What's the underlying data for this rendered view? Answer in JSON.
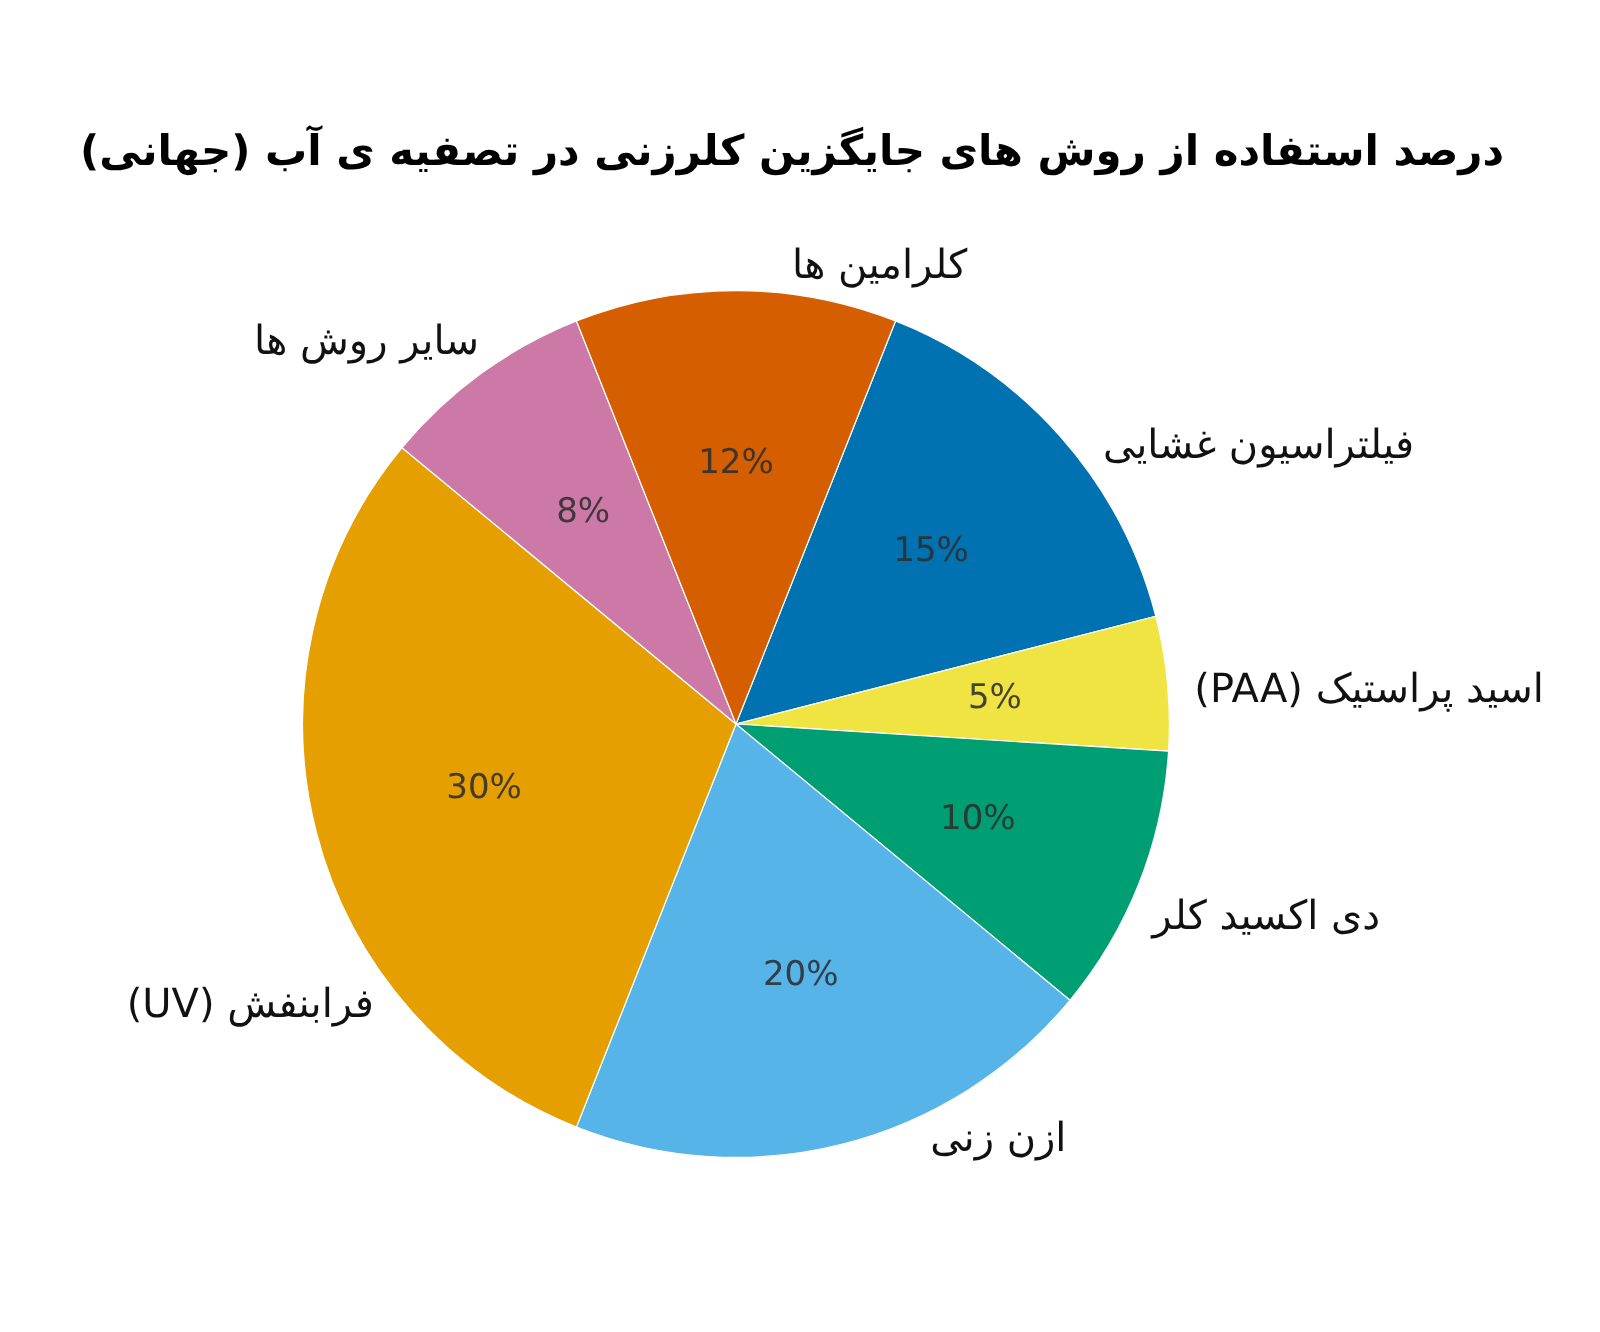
{
  "chart_data": {
    "type": "pie",
    "title": "درصد استفاده از روش های جایگزین کلرزنی در تصفیه ی آب (جهانی)",
    "categories": [
      "فیلتراسیون غشایی",
      "اسید پراستیک (PAA)",
      "دی اکسید کلر",
      "ازن زنی",
      "فرابنفش (UV)",
      "سایر روش ها",
      "کلرامین ها"
    ],
    "values": [
      15,
      5,
      10,
      20,
      30,
      8,
      12
    ],
    "colors": [
      "#0072b2",
      "#f0e442",
      "#009e73",
      "#56b4e9",
      "#e69f00",
      "#cc79a7",
      "#d55e00"
    ],
    "value_labels": [
      "15%",
      "5%",
      "10%",
      "20%",
      "30%",
      "8%",
      "12%"
    ]
  }
}
